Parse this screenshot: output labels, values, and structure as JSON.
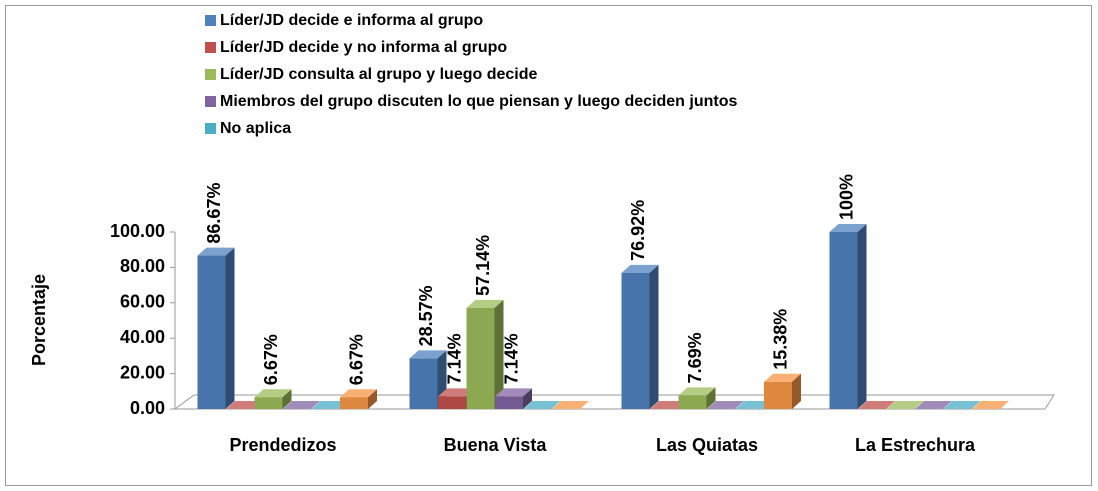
{
  "chart_data": {
    "type": "bar3d",
    "y_label": "Porcentaje",
    "categories": [
      "Prendedizos",
      "Buena Vista",
      "Las Quiatas",
      "La Estrechura"
    ],
    "series": [
      {
        "name": "Líder/JD decide e informa al grupo",
        "color": "#4f81bd",
        "values": [
          86.67,
          28.57,
          76.92,
          100
        ],
        "value_labels": [
          "86.67%",
          "28.57%",
          "76.92%",
          "100%"
        ]
      },
      {
        "name": "Líder/JD decide y no informa al grupo",
        "color": "#c0504d",
        "values": [
          0,
          7.14,
          0,
          0
        ],
        "value_labels": [
          null,
          "7.14%",
          null,
          null
        ]
      },
      {
        "name": "Líder/JD consulta  al grupo y luego decide",
        "color": "#9bbb59",
        "values": [
          6.67,
          57.14,
          7.69,
          0
        ],
        "value_labels": [
          "6.67%",
          "57.14%",
          "7.69%",
          null
        ]
      },
      {
        "name": "Miembros del grupo discuten lo que piensan y luego deciden juntos",
        "color": "#8064a2",
        "values": [
          0,
          7.14,
          0,
          0
        ],
        "value_labels": [
          null,
          "7.14%",
          null,
          null
        ]
      },
      {
        "name": "No aplica",
        "color": "#4bacc6",
        "values": [
          0,
          0,
          0,
          0
        ],
        "value_labels": [
          null,
          null,
          null,
          null
        ]
      },
      {
        "color": "#f79646",
        "values": [
          6.67,
          0,
          15.38,
          0
        ],
        "value_labels": [
          "6.67%",
          null,
          "15.38%",
          null
        ]
      }
    ],
    "ylim": [
      0,
      100
    ],
    "yticks": [
      {
        "value": 0,
        "label": "0.00"
      },
      {
        "value": 20,
        "label": "20.00"
      },
      {
        "value": 40,
        "label": "40.00"
      },
      {
        "value": 60,
        "label": "60.00"
      },
      {
        "value": 80,
        "label": "80.00"
      },
      {
        "value": 100,
        "label": "100.00"
      }
    ],
    "legend": "top"
  }
}
